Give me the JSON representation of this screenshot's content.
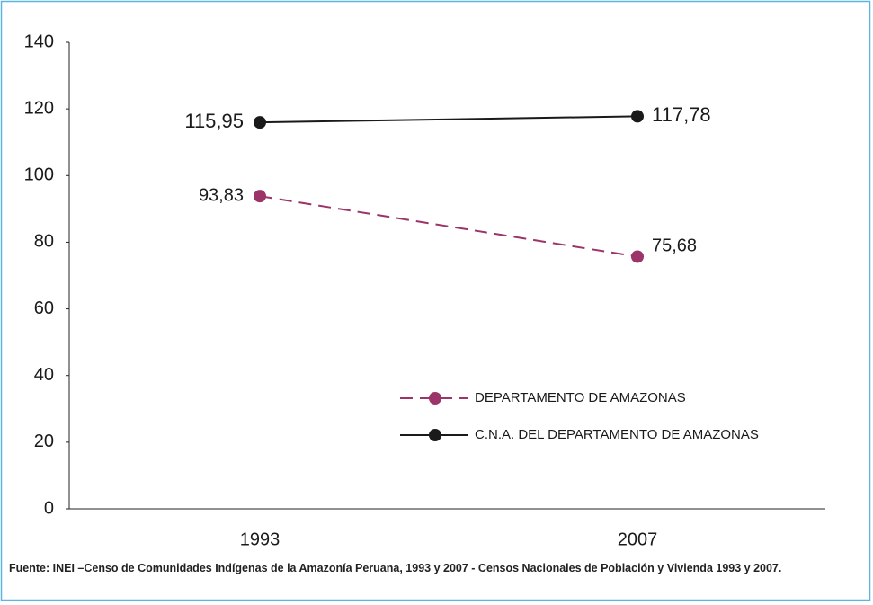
{
  "chart_data": {
    "type": "line",
    "categories": [
      "1993",
      "2007"
    ],
    "series": [
      {
        "name": "DEPARTAMENTO DE AMAZONAS",
        "color": "#9b3468",
        "linestyle": "dashed",
        "values": [
          93.83,
          75.68
        ],
        "value_labels": [
          "93,83",
          "75,68"
        ]
      },
      {
        "name": "C.N.A. DEL DEPARTAMENTO DE AMAZONAS",
        "color": "#1a1a1a",
        "linestyle": "solid",
        "values": [
          115.95,
          117.78
        ],
        "value_labels": [
          "115,95",
          "117,78"
        ]
      }
    ],
    "ylim": [
      0,
      140
    ],
    "yticks": [
      0,
      20,
      40,
      60,
      80,
      100,
      120,
      140
    ],
    "grid": false,
    "source": "Fuente: INEI –Censo de Comunidades Indígenas de la Amazonía Peruana, 1993 y 2007 - Censos Nacionales de Población y Vivienda 1993 y 2007."
  }
}
